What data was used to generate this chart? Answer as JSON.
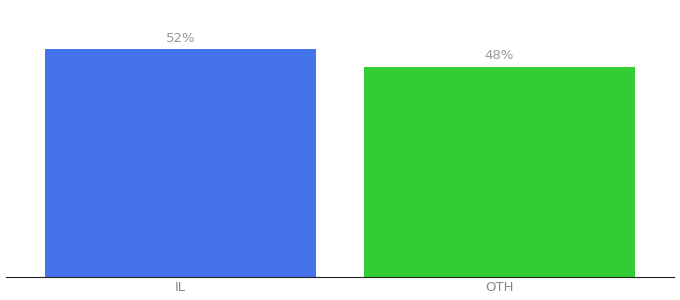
{
  "categories": [
    "IL",
    "OTH"
  ],
  "values": [
    52,
    48
  ],
  "bar_colors": [
    "#4472EA",
    "#33CC33"
  ],
  "label_texts": [
    "52%",
    "48%"
  ],
  "background_color": "#ffffff",
  "ylim": [
    0,
    62
  ],
  "bar_width": 0.85,
  "label_fontsize": 9.5,
  "tick_fontsize": 9.5,
  "label_color": "#999999",
  "tick_color": "#888888"
}
